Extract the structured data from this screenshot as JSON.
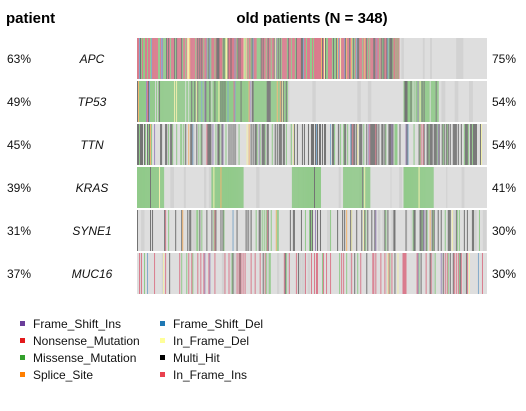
{
  "header": {
    "left_title": "patient",
    "main_title": "old patients (N = 348)"
  },
  "chart_data": {
    "type": "heatmap",
    "title": "old patients (N = 348)",
    "n_samples": 348,
    "genes": [
      {
        "name": "APC",
        "left_pct": "63%",
        "right_pct": "75%",
        "freq": 0.75,
        "dominant": "Nonsense_Mutation",
        "layout": "sorted"
      },
      {
        "name": "TP53",
        "left_pct": "49%",
        "right_pct": "54%",
        "freq": 0.54,
        "dominant": "Missense_Mutation",
        "layout": "sorted"
      },
      {
        "name": "TTN",
        "left_pct": "45%",
        "right_pct": "54%",
        "freq": 0.54,
        "dominant": "Multi_Hit",
        "layout": "scattered"
      },
      {
        "name": "KRAS",
        "left_pct": "39%",
        "right_pct": "41%",
        "freq": 0.41,
        "dominant": "Missense_Mutation",
        "layout": "scattered"
      },
      {
        "name": "SYNE1",
        "left_pct": "31%",
        "right_pct": "30%",
        "freq": 0.3,
        "dominant": "Multi_Hit",
        "layout": "scattered"
      },
      {
        "name": "MUC16",
        "left_pct": "37%",
        "right_pct": "30%",
        "freq": 0.3,
        "dominant": "Nonsense_Mutation",
        "layout": "scattered"
      }
    ],
    "legend": [
      {
        "label": "Frame_Shift_Ins",
        "color": "#6a3d9a"
      },
      {
        "label": "Frame_Shift_Del",
        "color": "#1f78b4"
      },
      {
        "label": "Nonsense_Mutation",
        "color": "#e31a1c"
      },
      {
        "label": "In_Frame_Del",
        "color": "#ffff99"
      },
      {
        "label": "Missense_Mutation",
        "color": "#33a02c"
      },
      {
        "label": "Multi_Hit",
        "color": "#000000"
      },
      {
        "label": "Splice_Site",
        "color": "#ff7f00"
      },
      {
        "label": "In_Frame_Ins",
        "color": "#e9414f"
      }
    ],
    "cell_colors": {
      "background": "#dedede",
      "Missense_Mutation": "#8ec987",
      "Multi_Hit": "#6f6f6f",
      "Nonsense_Mutation": "#d9788a",
      "Frame_Shift_Del": "#7fa7c9",
      "Frame_Shift_Ins": "#9d87ba",
      "Splice_Site": "#f3b36c",
      "In_Frame_Del": "#f4f1a8",
      "In_Frame_Ins": "#e98e98"
    }
  }
}
